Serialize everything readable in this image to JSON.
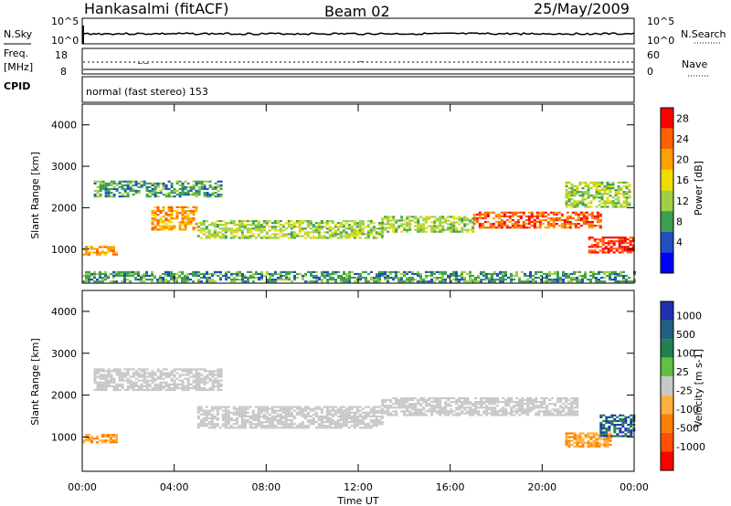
{
  "header": {
    "station": "Hankasalmi (fitACF)",
    "beam": "Beam 02",
    "date": "25/May/2009"
  },
  "summary": {
    "nsky_label": "N.Sky",
    "nsky_ticks": [
      "10^5",
      "10^0"
    ],
    "nsearch_label": "N.Search",
    "nsearch_ticks": [
      "10^5",
      "10^0"
    ],
    "freq_label_line1": "Freq.",
    "freq_label_line2": "[MHz]",
    "freq_ticks": [
      "18",
      "8"
    ],
    "nave_label": "Nave",
    "nave_ticks": [
      "60",
      "0"
    ],
    "cpid_label": "CPID",
    "cpid_text": "normal (fast stereo) 153"
  },
  "axes": {
    "ylabel": "Slant Range [km]",
    "yticks": [
      "4000",
      "3000",
      "2000",
      "1000"
    ],
    "xticks": [
      "00:00",
      "04:00",
      "08:00",
      "12:00",
      "16:00",
      "20:00",
      "00:00"
    ],
    "xlabel": "Time UT"
  },
  "power_scale": {
    "label": "Power [dB]",
    "ticks": [
      "28",
      "24",
      "20",
      "16",
      "12",
      "8",
      "4"
    ],
    "colors": [
      "#ff0000",
      "#ff6000",
      "#ffa000",
      "#f0dc00",
      "#a0d040",
      "#3ca050",
      "#2050c0",
      "#0000ff"
    ]
  },
  "velocity_scale": {
    "label": "Velocity [m s-1]",
    "ticks": [
      "1000",
      "500",
      "100",
      "25",
      "-25",
      "-100",
      "-500",
      "-1000"
    ],
    "colors": [
      "#2030b0",
      "#206080",
      "#208050",
      "#60c040",
      "#c8c8c8",
      "#ffb040",
      "#ff8000",
      "#ff5000",
      "#ff0000"
    ]
  },
  "chart_data": {
    "type": "heatmap",
    "x_range": [
      "00:00",
      "00:00"
    ],
    "y_range": [
      180,
      4500
    ],
    "panels": [
      {
        "name": "Power [dB]",
        "bands": [
          {
            "x": [
              0.0,
              1.5
            ],
            "y": [
              850,
              1050
            ],
            "level": 20
          },
          {
            "x": [
              0.5,
              6.0
            ],
            "y": [
              2250,
              2650
            ],
            "level": 8
          },
          {
            "x": [
              3.0,
              5.0
            ],
            "y": [
              1450,
              2000
            ],
            "level": 20
          },
          {
            "x": [
              5.0,
              13.0
            ],
            "y": [
              1250,
              1700
            ],
            "level": 12
          },
          {
            "x": [
              13.0,
              17.0
            ],
            "y": [
              1400,
              1800
            ],
            "level": 12
          },
          {
            "x": [
              17.0,
              22.5
            ],
            "y": [
              1500,
              1900
            ],
            "level": 24
          },
          {
            "x": [
              21.0,
              23.8
            ],
            "y": [
              2000,
              2600
            ],
            "level": 12
          },
          {
            "x": [
              22.0,
              24.0
            ],
            "y": [
              900,
              1300
            ],
            "level": 26
          },
          {
            "x": [
              0.0,
              24.0
            ],
            "y": [
              200,
              450
            ],
            "level": 8
          }
        ]
      },
      {
        "name": "Velocity [m s-1]",
        "bands": [
          {
            "x": [
              0.5,
              6.0
            ],
            "y": [
              2100,
              2600
            ],
            "velocity": 0
          },
          {
            "x": [
              5.0,
              13.0
            ],
            "y": [
              1200,
              1700
            ],
            "velocity": 0
          },
          {
            "x": [
              13.0,
              21.5
            ],
            "y": [
              1500,
              1950
            ],
            "velocity": 0
          },
          {
            "x": [
              0.0,
              1.5
            ],
            "y": [
              850,
              1050
            ],
            "velocity": -200
          },
          {
            "x": [
              21.0,
              23.0
            ],
            "y": [
              750,
              1100
            ],
            "velocity": -200
          },
          {
            "x": [
              22.5,
              24.0
            ],
            "y": [
              1000,
              1500
            ],
            "velocity": 500
          }
        ]
      }
    ]
  }
}
